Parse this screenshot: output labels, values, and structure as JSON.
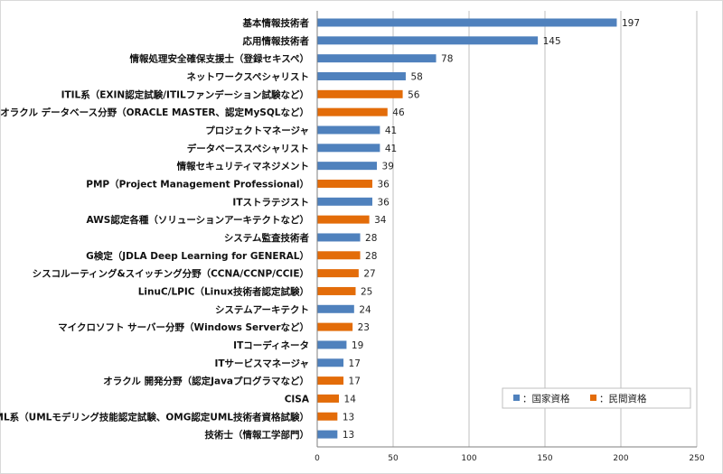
{
  "colors": {
    "national": "#4f81bd",
    "private": "#e36c09",
    "grid": "#bfbfbf",
    "axis": "#7f7f7f"
  },
  "chart_data": {
    "type": "bar",
    "orientation": "horizontal",
    "title": "",
    "xlabel": "",
    "ylabel": "",
    "xlim": [
      0,
      250
    ],
    "ticks": [
      0,
      50,
      100,
      150,
      200,
      250
    ],
    "grid": true,
    "legend_position": "bottom-right",
    "legend": [
      {
        "name": "：国家資格",
        "color": "#4f81bd"
      },
      {
        "name": "：民間資格",
        "color": "#e36c09"
      }
    ],
    "categories": [
      "基本情報技術者",
      "応用情報技術者",
      "情報処理安全確保支援士（登録セキスペ）",
      "ネットワークスペシャリスト",
      "ITIL系（EXIN認定試験/ITILファンデーション試験など）",
      "オラクル データベース分野（ORACLE MASTER、認定MySQLなど）",
      "プロジェクトマネージャ",
      "データベーススペシャリスト",
      "情報セキュリティマネジメント",
      "PMP（Project Management Professional）",
      "ITストラテジスト",
      "AWS認定各種（ソリューションアーキテクトなど）",
      "システム監査技術者",
      "G検定（JDLA Deep Learning for GENERAL）",
      "シスコルーティング&スイッチング分野（CCNA/CCNP/CCIE）",
      "LinuC/LPIC（Linux技術者認定試験）",
      "システムアーキテクト",
      "マイクロソフト サーバー分野（Windows Serverなど）",
      "ITコーディネータ",
      "ITサービスマネージャ",
      "オラクル 開発分野（認定Javaプログラマなど）",
      "CISA",
      "UML系（UMLモデリング技能認定試験、OMG認定UML技術者資格試験）",
      "技術士（情報工学部門）"
    ],
    "values": [
      197,
      145,
      78,
      58,
      56,
      46,
      41,
      41,
      39,
      36,
      36,
      34,
      28,
      28,
      27,
      25,
      24,
      23,
      19,
      17,
      17,
      14,
      13,
      13
    ],
    "series_type": [
      "national",
      "national",
      "national",
      "national",
      "private",
      "private",
      "national",
      "national",
      "national",
      "private",
      "national",
      "private",
      "national",
      "private",
      "private",
      "private",
      "national",
      "private",
      "national",
      "national",
      "private",
      "private",
      "private",
      "national"
    ]
  }
}
